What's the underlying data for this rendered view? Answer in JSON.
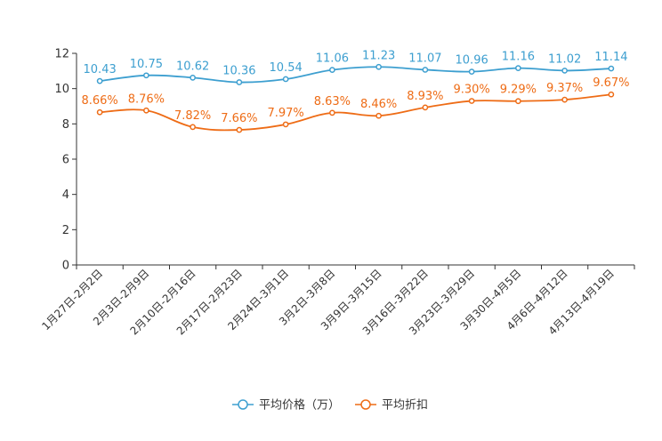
{
  "chart_data": {
    "type": "line",
    "title": "",
    "xlabel": "",
    "ylabel": "",
    "ylim": [
      0,
      12
    ],
    "yticks": [
      "0",
      "2",
      "4",
      "6",
      "8",
      "10",
      "12"
    ],
    "grid": false,
    "legend_position": "bottom",
    "categories": [
      "1月27日-2月2日",
      "2月3日-2月9日",
      "2月10日-2月16日",
      "2月17日-2月23日",
      "2月24日-3月1日",
      "3月2日-3月8日",
      "3月9日-3月15日",
      "3月16日-3月22日",
      "3月23日-3月29日",
      "3月30日-4月5日",
      "4月6日-4月12日",
      "4月13日-4月19日"
    ],
    "series": [
      {
        "name": "平均价格（万）",
        "color": "#3d9fd0",
        "values": [
          10.43,
          10.75,
          10.62,
          10.36,
          10.54,
          11.06,
          11.23,
          11.07,
          10.96,
          11.16,
          11.02,
          11.14
        ],
        "labels": [
          "10.43",
          "10.75",
          "10.62",
          "10.36",
          "10.54",
          "11.06",
          "11.23",
          "11.07",
          "10.96",
          "11.16",
          "11.02",
          "11.14"
        ]
      },
      {
        "name": "平均折扣",
        "color": "#ee6c16",
        "values": [
          8.66,
          8.76,
          7.82,
          7.66,
          7.97,
          8.63,
          8.46,
          8.93,
          9.3,
          9.29,
          9.37,
          9.67
        ],
        "labels": [
          "8.66%",
          "8.76%",
          "7.82%",
          "7.66%",
          "7.97%",
          "8.63%",
          "8.46%",
          "8.93%",
          "9.30%",
          "9.29%",
          "9.37%",
          "9.67%"
        ]
      }
    ]
  }
}
